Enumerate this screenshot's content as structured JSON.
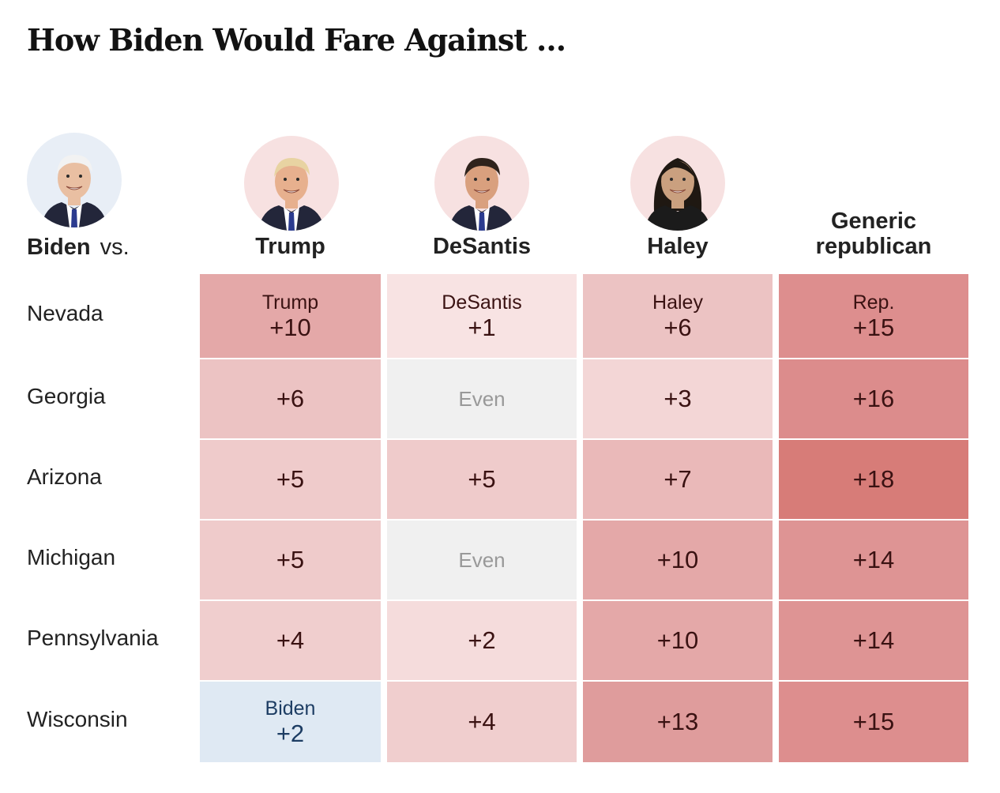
{
  "title": "How Biden Would Fare Against …",
  "biden_label": {
    "name": "Biden",
    "vs": "vs."
  },
  "columns": [
    {
      "name": "Trump",
      "avatar_bg": "#f7e1e1",
      "skin": "#e7b08e",
      "hair": "#e8d3a2",
      "tie": "#2b3b8f"
    },
    {
      "name": "DeSantis",
      "avatar_bg": "#f7e1e1",
      "skin": "#d9a07e",
      "hair": "#2f231c",
      "tie": "#2b3b8f"
    },
    {
      "name": "Haley",
      "avatar_bg": "#f7e1e1",
      "skin": "#caa07f",
      "hair": "#1f1812",
      "tie": ""
    },
    {
      "name": "Generic republican"
    }
  ],
  "biden_avatar": {
    "bg": "#e8eef6",
    "skin": "#e9bfa2",
    "hair": "#f2f2f2",
    "tie": "#2b3b8f"
  },
  "colors": {
    "rep_1": "#f8e3e3",
    "rep_2": "#f5dcdc",
    "rep_3": "#f3d6d6",
    "rep_4": "#f0cece",
    "rep_5": "#efcbcb",
    "rep_6": "#ecc3c3",
    "rep_7": "#eab9b9",
    "rep_10": "#e4a8a8",
    "rep_13": "#df9c9c",
    "rep_14": "#de9494",
    "rep_15": "#dd8e8e",
    "rep_16": "#dc8c8c",
    "rep_18": "#d77c78",
    "even": "#f0f0f0",
    "biden_2": "#dfe9f3"
  },
  "chart_data": {
    "type": "table",
    "title": "How Biden Would Fare Against …",
    "columns": [
      "Trump",
      "DeSantis",
      "Haley",
      "Generic republican"
    ],
    "rows": [
      {
        "state": "Nevada",
        "cells": [
          {
            "leader": "Trump",
            "margin": 10,
            "text": "+10",
            "label": "Trump"
          },
          {
            "leader": "DeSantis",
            "margin": 1,
            "text": "+1",
            "label": "DeSantis"
          },
          {
            "leader": "Haley",
            "margin": 6,
            "text": "+6",
            "label": "Haley"
          },
          {
            "leader": "Rep.",
            "margin": 15,
            "text": "+15",
            "label": "Rep."
          }
        ]
      },
      {
        "state": "Georgia",
        "cells": [
          {
            "leader": "Rep",
            "margin": 6,
            "text": "+6"
          },
          {
            "leader": "Even",
            "margin": 0,
            "text": "Even"
          },
          {
            "leader": "Rep",
            "margin": 3,
            "text": "+3"
          },
          {
            "leader": "Rep",
            "margin": 16,
            "text": "+16"
          }
        ]
      },
      {
        "state": "Arizona",
        "cells": [
          {
            "leader": "Rep",
            "margin": 5,
            "text": "+5"
          },
          {
            "leader": "Rep",
            "margin": 5,
            "text": "+5"
          },
          {
            "leader": "Rep",
            "margin": 7,
            "text": "+7"
          },
          {
            "leader": "Rep",
            "margin": 18,
            "text": "+18"
          }
        ]
      },
      {
        "state": "Michigan",
        "cells": [
          {
            "leader": "Rep",
            "margin": 5,
            "text": "+5"
          },
          {
            "leader": "Even",
            "margin": 0,
            "text": "Even"
          },
          {
            "leader": "Rep",
            "margin": 10,
            "text": "+10"
          },
          {
            "leader": "Rep",
            "margin": 14,
            "text": "+14"
          }
        ]
      },
      {
        "state": "Pennsylvania",
        "cells": [
          {
            "leader": "Rep",
            "margin": 4,
            "text": "+4"
          },
          {
            "leader": "Rep",
            "margin": 2,
            "text": "+2"
          },
          {
            "leader": "Rep",
            "margin": 10,
            "text": "+10"
          },
          {
            "leader": "Rep",
            "margin": 14,
            "text": "+14"
          }
        ]
      },
      {
        "state": "Wisconsin",
        "cells": [
          {
            "leader": "Biden",
            "margin": 2,
            "text": "+2",
            "label": "Biden"
          },
          {
            "leader": "Rep",
            "margin": 4,
            "text": "+4"
          },
          {
            "leader": "Rep",
            "margin": 13,
            "text": "+13"
          },
          {
            "leader": "Rep",
            "margin": 15,
            "text": "+15"
          }
        ]
      }
    ]
  }
}
